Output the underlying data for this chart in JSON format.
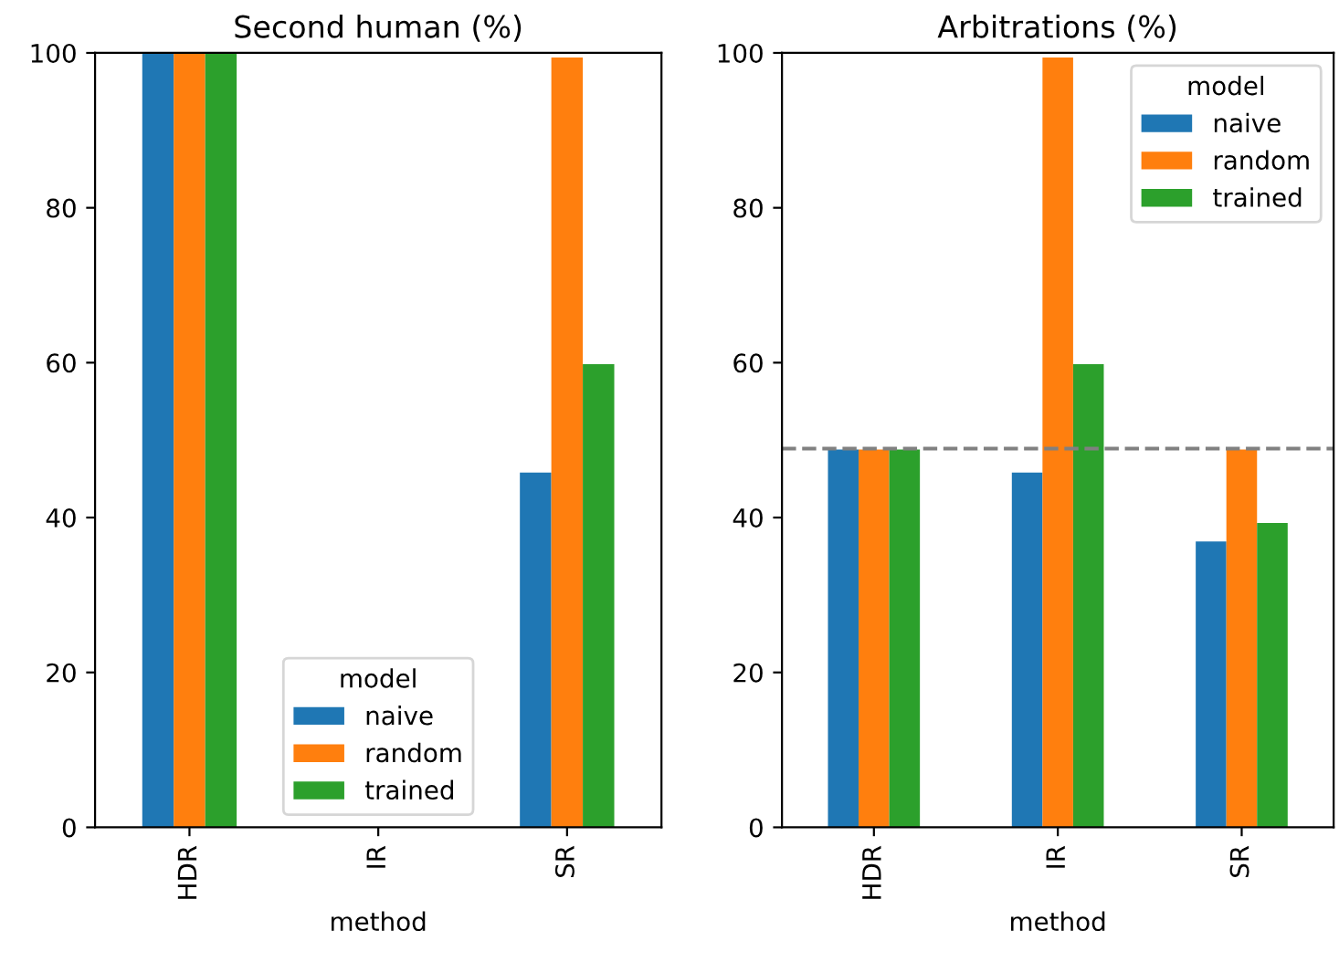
{
  "chart_data": [
    {
      "type": "bar",
      "title": "Second human (%)",
      "xlabel": "method",
      "categories": [
        "HDR",
        "IR",
        "SR"
      ],
      "legend_title": "model",
      "legend": "bottom",
      "ylim": [
        0,
        100
      ],
      "yticks": [
        0,
        20,
        40,
        60,
        80,
        100
      ],
      "grid": false,
      "series": [
        {
          "name": "naive",
          "color": "#1f77b4",
          "values": [
            100,
            null,
            45.8
          ]
        },
        {
          "name": "random",
          "color": "#ff7f0e",
          "values": [
            100,
            null,
            99.4
          ]
        },
        {
          "name": "trained",
          "color": "#2ca02c",
          "values": [
            100,
            null,
            59.8
          ]
        }
      ]
    },
    {
      "type": "bar",
      "title": "Arbitrations (%)",
      "xlabel": "method",
      "categories": [
        "HDR",
        "IR",
        "SR"
      ],
      "legend_title": "model",
      "legend": "top right",
      "ylim": [
        0,
        100
      ],
      "yticks": [
        0,
        20,
        40,
        60,
        80,
        100
      ],
      "grid": false,
      "ref_lines": [
        {
          "axis": "y",
          "value": 48.9,
          "color": "#808080",
          "line_style": "dashed"
        }
      ],
      "series": [
        {
          "name": "naive",
          "color": "#1f77b4",
          "values": [
            48.8,
            45.8,
            36.9
          ]
        },
        {
          "name": "random",
          "color": "#ff7f0e",
          "values": [
            48.8,
            99.4,
            48.8
          ]
        },
        {
          "name": "trained",
          "color": "#2ca02c",
          "values": [
            48.8,
            59.8,
            39.3
          ]
        }
      ]
    }
  ]
}
